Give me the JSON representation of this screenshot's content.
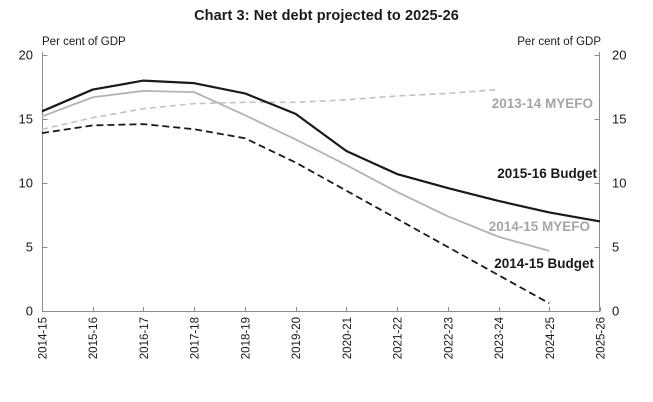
{
  "title": "Chart 3: Net debt projected to 2025-26",
  "axis": {
    "left_unit_label": "Per cent of GDP",
    "right_unit_label": "Per cent of GDP",
    "y_ticks": [
      0,
      5,
      10,
      15,
      20
    ]
  },
  "chart_data": {
    "type": "line",
    "title": "Chart 3: Net debt projected to 2025-26",
    "ylabel": "Per cent of GDP",
    "ylim": [
      0,
      20
    ],
    "grid": false,
    "legend_position": "inline-labels",
    "categories": [
      "2014-15",
      "2015-16",
      "2016-17",
      "2017-18",
      "2018-19",
      "2019-20",
      "2020-21",
      "2021-22",
      "2022-23",
      "2023-24",
      "2024-25",
      "2025-26"
    ],
    "series": [
      {
        "name": "2013-14 MYEFO",
        "style": "dashed",
        "color": "#c2c2c2",
        "label_color": "#a6a6a6",
        "values": [
          14.2,
          15.1,
          15.8,
          16.2,
          16.3,
          16.3,
          16.5,
          16.8,
          17.0,
          17.3,
          null,
          null
        ]
      },
      {
        "name": "2015-16 Budget",
        "style": "solid",
        "color": "#1a1a1a",
        "label_color": "#1a1a1a",
        "values": [
          15.6,
          17.3,
          18.0,
          17.8,
          17.0,
          15.4,
          12.5,
          10.7,
          9.6,
          8.6,
          7.7,
          7.0
        ]
      },
      {
        "name": "2014-15 MYEFO",
        "style": "solid",
        "color": "#b3b3b3",
        "label_color": "#a6a6a6",
        "values": [
          15.2,
          16.7,
          17.2,
          17.1,
          15.3,
          13.4,
          11.4,
          9.3,
          7.4,
          5.8,
          4.7,
          null
        ]
      },
      {
        "name": "2014-15 Budget",
        "style": "dashed",
        "color": "#1a1a1a",
        "label_color": "#1a1a1a",
        "values": [
          13.9,
          14.5,
          14.6,
          14.2,
          13.5,
          11.6,
          9.4,
          7.2,
          5.0,
          2.8,
          0.6,
          null
        ]
      }
    ],
    "axis_color": "#8c8c8c"
  }
}
